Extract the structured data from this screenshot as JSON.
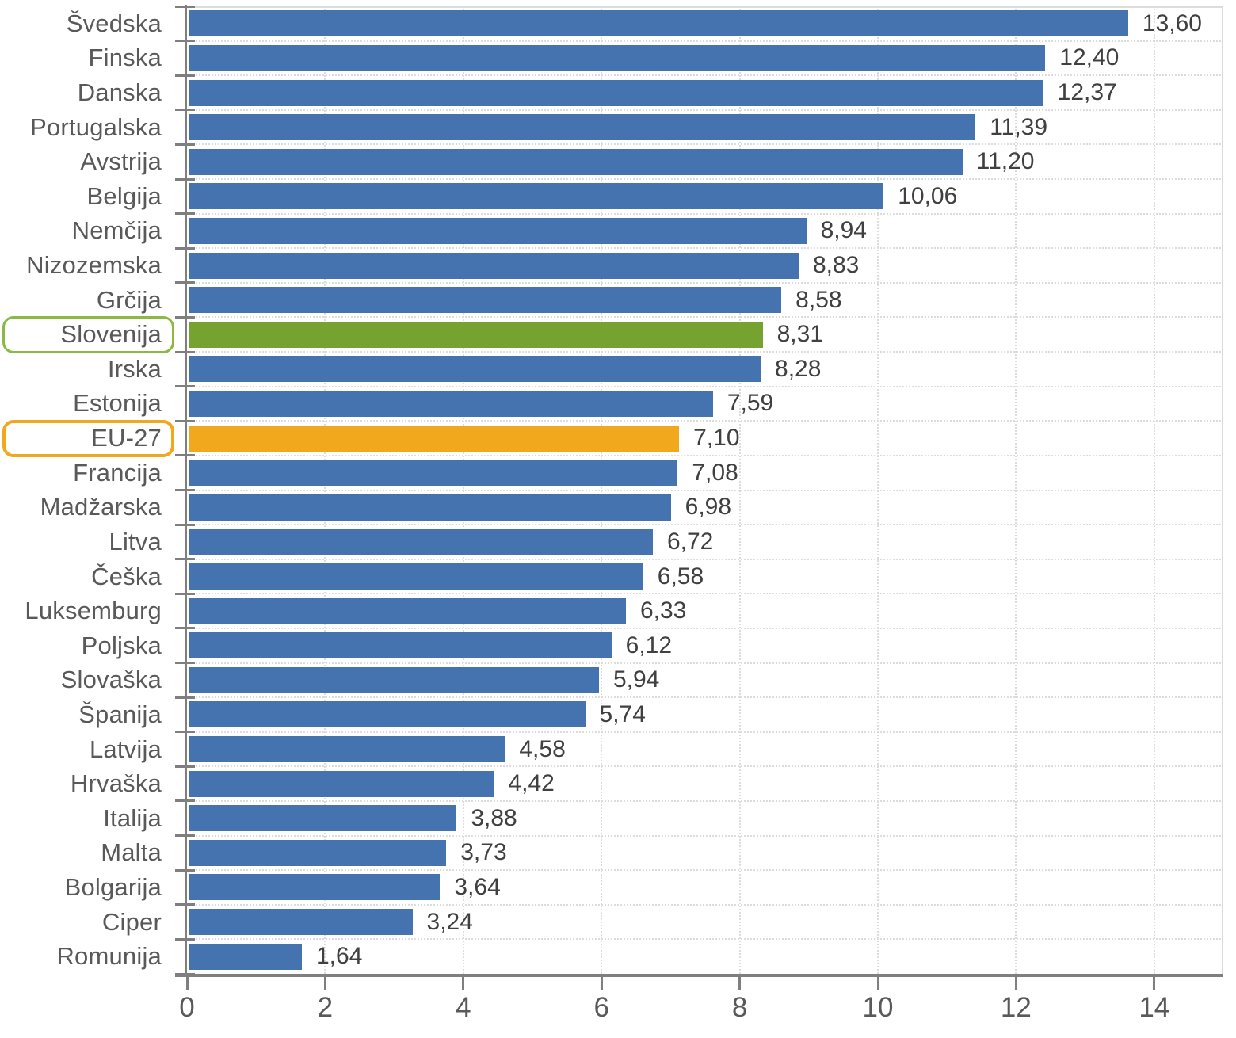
{
  "chart_data": {
    "type": "bar",
    "orientation": "horizontal",
    "title": "",
    "xlabel": "",
    "ylabel": "",
    "categories": [
      "Švedska",
      "Finska",
      "Danska",
      "Portugalska",
      "Avstrija",
      "Belgija",
      "Nemčija",
      "Nizozemska",
      "Grčija",
      "Slovenija",
      "Irska",
      "Estonija",
      "EU-27",
      "Francija",
      "Madžarska",
      "Litva",
      "Češka",
      "Luksemburg",
      "Poljska",
      "Slovaška",
      "Španija",
      "Latvija",
      "Hrvaška",
      "Italija",
      "Malta",
      "Bolgarija",
      "Ciper",
      "Romunija"
    ],
    "values": [
      13.6,
      12.4,
      12.37,
      11.39,
      11.2,
      10.06,
      8.94,
      8.83,
      8.58,
      8.31,
      8.28,
      7.59,
      7.1,
      7.08,
      6.98,
      6.72,
      6.58,
      6.33,
      6.12,
      5.94,
      5.74,
      4.58,
      4.42,
      3.88,
      3.73,
      3.64,
      3.24,
      1.64
    ],
    "value_labels": [
      "13,60",
      "12,40",
      "12,37",
      "11,39",
      "11,20",
      "10,06",
      "8,94",
      "8,83",
      "8,58",
      "8,31",
      "8,28",
      "7,59",
      "7,10",
      "7,08",
      "6,98",
      "6,72",
      "6,58",
      "6,33",
      "6,12",
      "5,94",
      "5,74",
      "4,58",
      "4,42",
      "3,88",
      "3,73",
      "3,64",
      "3,24",
      "1,64"
    ],
    "xlim": [
      0,
      15
    ],
    "xticks": [
      0,
      2,
      4,
      6,
      8,
      10,
      12,
      14
    ],
    "grid": true,
    "legend": false,
    "highlights": [
      {
        "category": "Slovenija",
        "index": 9,
        "bar_color": "#76A22F",
        "outline_color": "#8CB944",
        "outline_width": 3
      },
      {
        "category": "EU-27",
        "index": 12,
        "bar_color": "#F2A81D",
        "outline_color": "#F2A81D",
        "outline_width": 4
      }
    ],
    "colors": {
      "bar_default": "#4573B0",
      "category_label": "#595959",
      "value_label": "#404040",
      "axis": "#7F7F7F",
      "gridline": "#DCDCDC",
      "background": "#FFFFFF"
    }
  }
}
